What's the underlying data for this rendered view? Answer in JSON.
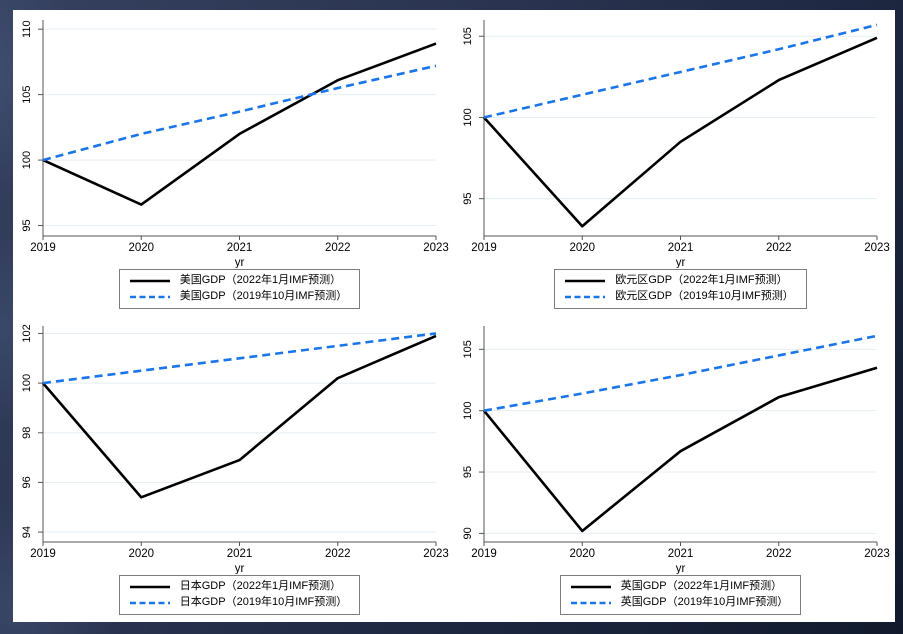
{
  "background": {
    "desktop_top": "#35415f",
    "desktop_bottom": "#111a2d",
    "canvas": "#ffffff"
  },
  "style_colors": {
    "solid_series": "#000000",
    "dashed_series": "#1a75e8",
    "gridline": "#e4eef4",
    "axis": "#555555",
    "legend_border": "#7d7d7d",
    "text": "#000000"
  },
  "chart_data": [
    {
      "type": "line",
      "region": "美国",
      "x": [
        2019,
        2020,
        2021,
        2022,
        2023
      ],
      "xlabel": "yr",
      "xtick_labels": [
        "2019",
        "2020",
        "2021",
        "2022",
        "2023"
      ],
      "yticks": [
        95,
        100,
        105,
        110
      ],
      "ylim": [
        94.2,
        110.7
      ],
      "grid": true,
      "legend_position": "bottom",
      "series": [
        {
          "name": "美国GDP（2022年1月IMF预测）",
          "line": "solid",
          "color": "#000000",
          "values": [
            100,
            96.6,
            102.0,
            106.1,
            108.9
          ]
        },
        {
          "name": "美国GDP（2019年10月IMF预测）",
          "line": "dashed",
          "color": "#1a75e8",
          "values": [
            100,
            102.0,
            103.7,
            105.5,
            107.2
          ]
        }
      ]
    },
    {
      "type": "line",
      "region": "欧元区",
      "x": [
        2019,
        2020,
        2021,
        2022,
        2023
      ],
      "xlabel": "yr",
      "xtick_labels": [
        "2019",
        "2020",
        "2021",
        "2022",
        "2023"
      ],
      "yticks": [
        95,
        100,
        105
      ],
      "ylim": [
        92.7,
        106.0
      ],
      "grid": true,
      "legend_position": "bottom",
      "series": [
        {
          "name": "欧元区GDP（2022年1月IMF预测）",
          "line": "solid",
          "color": "#000000",
          "values": [
            100,
            93.3,
            98.5,
            102.3,
            104.9
          ]
        },
        {
          "name": "欧元区GDP（2019年10月IMF预测）",
          "line": "dashed",
          "color": "#1a75e8",
          "values": [
            100,
            101.4,
            102.8,
            104.2,
            105.7
          ]
        }
      ]
    },
    {
      "type": "line",
      "region": "日本",
      "x": [
        2019,
        2020,
        2021,
        2022,
        2023
      ],
      "xlabel": "yr",
      "xtick_labels": [
        "2019",
        "2020",
        "2021",
        "2022",
        "2023"
      ],
      "yticks": [
        94,
        96,
        98,
        100,
        102
      ],
      "ylim": [
        93.6,
        102.3
      ],
      "grid": true,
      "legend_position": "bottom",
      "series": [
        {
          "name": "日本GDP（2022年1月IMF预测）",
          "line": "solid",
          "color": "#000000",
          "values": [
            100,
            95.4,
            96.9,
            100.2,
            101.9
          ]
        },
        {
          "name": "日本GDP（2019年10月IMF预测）",
          "line": "dashed",
          "color": "#1a75e8",
          "values": [
            100,
            100.5,
            101.0,
            101.5,
            102.0
          ]
        }
      ]
    },
    {
      "type": "line",
      "region": "英国",
      "x": [
        2019,
        2020,
        2021,
        2022,
        2023
      ],
      "xlabel": "yr",
      "xtick_labels": [
        "2019",
        "2020",
        "2021",
        "2022",
        "2023"
      ],
      "yticks": [
        90,
        95,
        100,
        105
      ],
      "ylim": [
        89.3,
        106.9
      ],
      "grid": true,
      "legend_position": "bottom",
      "series": [
        {
          "name": "英国GDP（2022年1月IMF预测）",
          "line": "solid",
          "color": "#000000",
          "values": [
            100,
            90.2,
            96.7,
            101.1,
            103.5
          ]
        },
        {
          "name": "英国GDP（2019年10月IMF预测）",
          "line": "dashed",
          "color": "#1a75e8",
          "values": [
            100,
            101.4,
            102.9,
            104.5,
            106.1
          ]
        }
      ]
    }
  ]
}
